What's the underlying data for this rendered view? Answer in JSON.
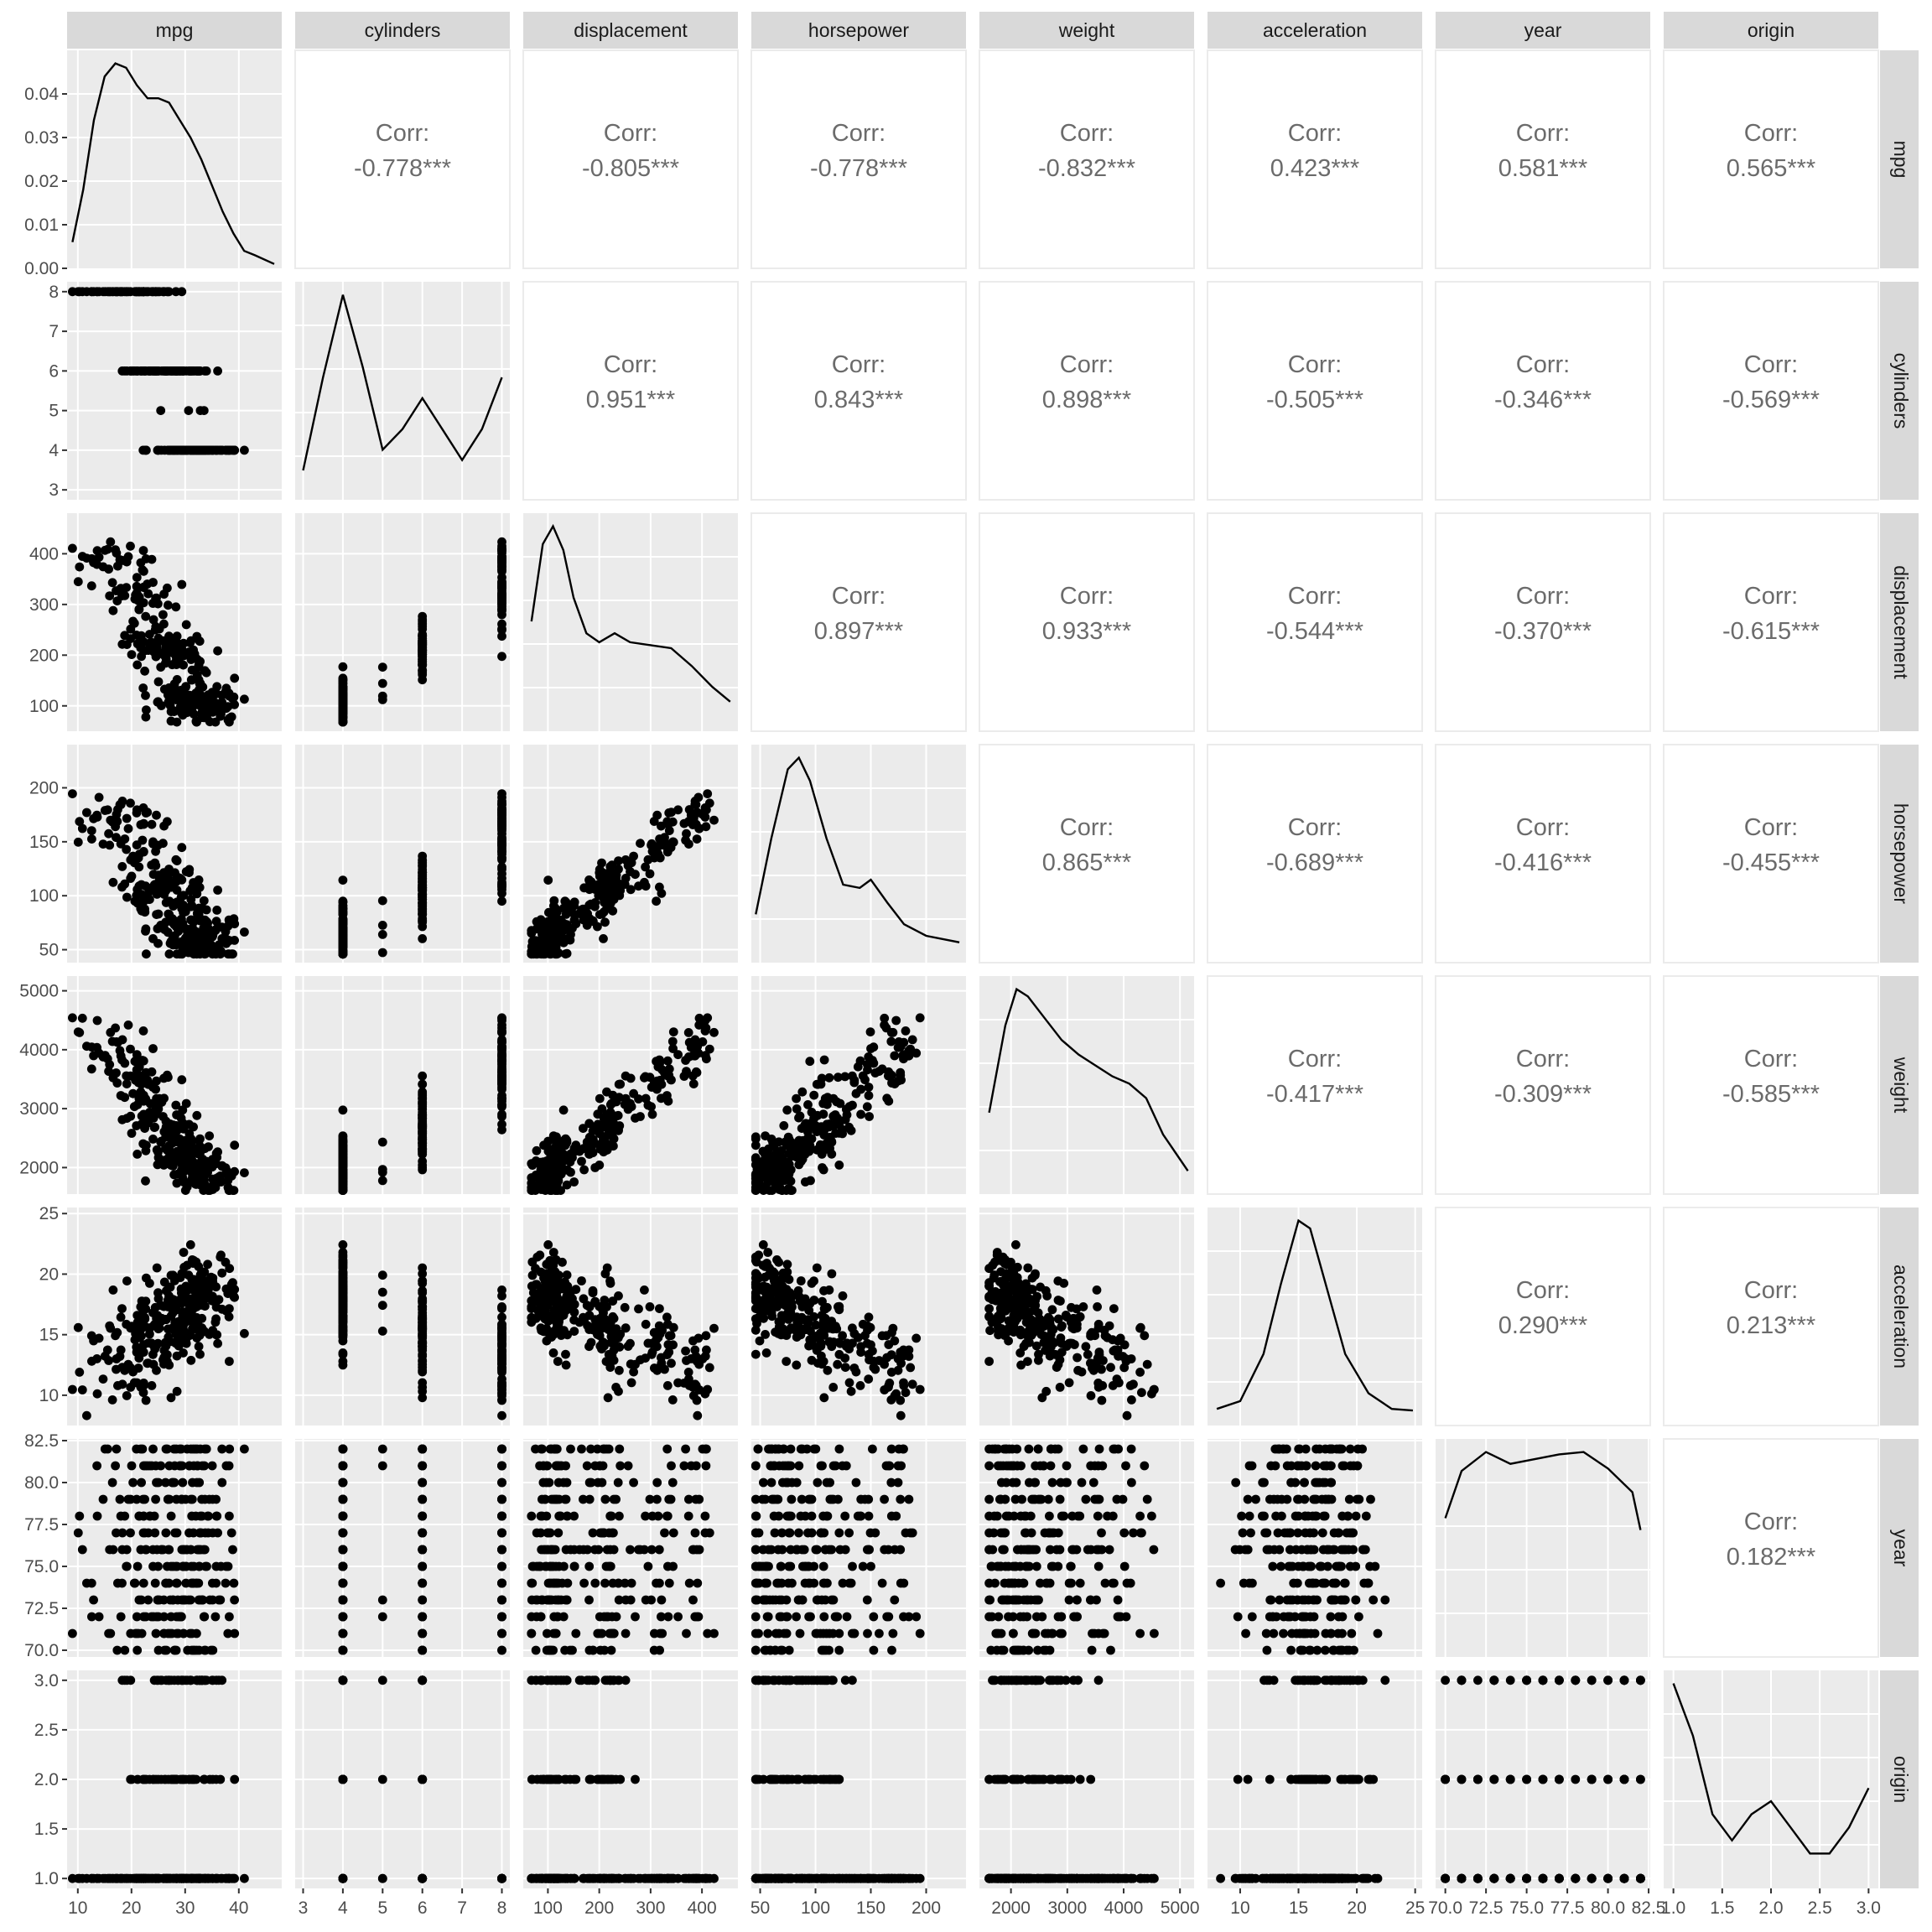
{
  "chart_data": {
    "type": "scatter",
    "kind": "pairs-plot",
    "variables": [
      "mpg",
      "cylinders",
      "displacement",
      "horsepower",
      "weight",
      "acceleration",
      "year",
      "origin"
    ],
    "corr_prefix": "Corr:",
    "correlations": [
      {
        "row": "mpg",
        "col": "cylinders",
        "value": "-0.778***"
      },
      {
        "row": "mpg",
        "col": "displacement",
        "value": "-0.805***"
      },
      {
        "row": "mpg",
        "col": "horsepower",
        "value": "-0.778***"
      },
      {
        "row": "mpg",
        "col": "weight",
        "value": "-0.832***"
      },
      {
        "row": "mpg",
        "col": "acceleration",
        "value": "0.423***"
      },
      {
        "row": "mpg",
        "col": "year",
        "value": "0.581***"
      },
      {
        "row": "mpg",
        "col": "origin",
        "value": "0.565***"
      },
      {
        "row": "cylinders",
        "col": "displacement",
        "value": "0.951***"
      },
      {
        "row": "cylinders",
        "col": "horsepower",
        "value": "0.843***"
      },
      {
        "row": "cylinders",
        "col": "weight",
        "value": "0.898***"
      },
      {
        "row": "cylinders",
        "col": "acceleration",
        "value": "-0.505***"
      },
      {
        "row": "cylinders",
        "col": "year",
        "value": "-0.346***"
      },
      {
        "row": "cylinders",
        "col": "origin",
        "value": "-0.569***"
      },
      {
        "row": "displacement",
        "col": "horsepower",
        "value": "0.897***"
      },
      {
        "row": "displacement",
        "col": "weight",
        "value": "0.933***"
      },
      {
        "row": "displacement",
        "col": "acceleration",
        "value": "-0.544***"
      },
      {
        "row": "displacement",
        "col": "year",
        "value": "-0.370***"
      },
      {
        "row": "displacement",
        "col": "origin",
        "value": "-0.615***"
      },
      {
        "row": "horsepower",
        "col": "weight",
        "value": "0.865***"
      },
      {
        "row": "horsepower",
        "col": "acceleration",
        "value": "-0.689***"
      },
      {
        "row": "horsepower",
        "col": "year",
        "value": "-0.416***"
      },
      {
        "row": "horsepower",
        "col": "origin",
        "value": "-0.455***"
      },
      {
        "row": "weight",
        "col": "acceleration",
        "value": "-0.417***"
      },
      {
        "row": "weight",
        "col": "year",
        "value": "-0.309***"
      },
      {
        "row": "weight",
        "col": "origin",
        "value": "-0.585***"
      },
      {
        "row": "acceleration",
        "col": "year",
        "value": "0.290***"
      },
      {
        "row": "acceleration",
        "col": "origin",
        "value": "0.213***"
      },
      {
        "row": "year",
        "col": "origin",
        "value": "0.182***"
      }
    ],
    "x_axes": [
      {
        "var": "mpg",
        "range": [
          8,
          48
        ],
        "ticks": [
          10,
          20,
          30,
          40
        ],
        "tick_labels": [
          "10",
          "20",
          "30",
          "40"
        ]
      },
      {
        "var": "cylinders",
        "range": [
          2.8,
          8.2
        ],
        "ticks": [
          3,
          4,
          5,
          6,
          7,
          8
        ],
        "tick_labels": [
          "3",
          "4",
          "5",
          "6",
          "7",
          "8"
        ]
      },
      {
        "var": "displacement",
        "range": [
          52,
          470
        ],
        "ticks": [
          100,
          200,
          300,
          400
        ],
        "tick_labels": [
          "100",
          "200",
          "300",
          "400"
        ]
      },
      {
        "var": "horsepower",
        "range": [
          42,
          236
        ],
        "ticks": [
          50,
          100,
          150,
          200
        ],
        "tick_labels": [
          "50",
          "100",
          "150",
          "200"
        ]
      },
      {
        "var": "weight",
        "range": [
          1440,
          5250
        ],
        "ticks": [
          2000,
          3000,
          4000,
          5000
        ],
        "tick_labels": [
          "2000",
          "3000",
          "4000",
          "5000"
        ]
      },
      {
        "var": "acceleration",
        "range": [
          7.2,
          25.6
        ],
        "ticks": [
          10,
          15,
          20,
          25
        ],
        "tick_labels": [
          "10",
          "15",
          "20",
          "25"
        ]
      },
      {
        "var": "year",
        "range": [
          69.4,
          82.6
        ],
        "ticks": [
          70.0,
          72.5,
          75.0,
          77.5,
          80.0,
          82.5
        ],
        "tick_labels": [
          "70.0",
          "72.5",
          "75.0",
          "77.5",
          "80.0",
          "82.5"
        ]
      },
      {
        "var": "origin",
        "range": [
          0.9,
          3.1
        ],
        "ticks": [
          1.0,
          1.5,
          2.0,
          2.5,
          3.0
        ],
        "tick_labels": [
          "1.0",
          "1.5",
          "2.0",
          "2.5",
          "3.0"
        ]
      }
    ],
    "y_axes": [
      {
        "var": "mpg",
        "range": [
          0,
          0.05
        ],
        "ticks": [
          0.0,
          0.01,
          0.02,
          0.03,
          0.04
        ],
        "tick_labels": [
          "0.00",
          "0.01",
          "0.02",
          "0.03",
          "0.04"
        ]
      },
      {
        "var": "cylinders",
        "range": [
          2.75,
          8.25
        ],
        "ticks": [
          3,
          4,
          5,
          6,
          7,
          8
        ],
        "tick_labels": [
          "3",
          "4",
          "5",
          "6",
          "7",
          "8"
        ]
      },
      {
        "var": "displacement",
        "range": [
          50,
          480
        ],
        "ticks": [
          100,
          200,
          300,
          400
        ],
        "tick_labels": [
          "100",
          "200",
          "300",
          "400"
        ]
      },
      {
        "var": "horsepower",
        "range": [
          38,
          240
        ],
        "ticks": [
          50,
          100,
          150,
          200
        ],
        "tick_labels": [
          "50",
          "100",
          "150",
          "200"
        ]
      },
      {
        "var": "weight",
        "range": [
          1550,
          5250
        ],
        "ticks": [
          2000,
          3000,
          4000,
          5000
        ],
        "tick_labels": [
          "2000",
          "3000",
          "4000",
          "5000"
        ]
      },
      {
        "var": "acceleration",
        "range": [
          7.5,
          25.5
        ],
        "ticks": [
          10,
          15,
          20,
          25
        ],
        "tick_labels": [
          "10",
          "15",
          "20",
          "25"
        ]
      },
      {
        "var": "year",
        "range": [
          69.6,
          82.6
        ],
        "ticks": [
          70.0,
          72.5,
          75.0,
          77.5,
          80.0,
          82.5
        ],
        "tick_labels": [
          "70.0",
          "72.5",
          "75.0",
          "77.5",
          "80.0",
          "82.5"
        ]
      },
      {
        "var": "origin",
        "range": [
          0.9,
          3.1
        ],
        "ticks": [
          1.0,
          1.5,
          2.0,
          2.5,
          3.0
        ],
        "tick_labels": [
          "1.0",
          "1.5",
          "2.0",
          "2.5",
          "3.0"
        ]
      }
    ],
    "densities": [
      {
        "var": "mpg",
        "points": [
          [
            9,
            0.006
          ],
          [
            11,
            0.018
          ],
          [
            13,
            0.034
          ],
          [
            15,
            0.044
          ],
          [
            17,
            0.047
          ],
          [
            19,
            0.046
          ],
          [
            21,
            0.042
          ],
          [
            23,
            0.039
          ],
          [
            25,
            0.039
          ],
          [
            27,
            0.038
          ],
          [
            29,
            0.034
          ],
          [
            31,
            0.03
          ],
          [
            33,
            0.025
          ],
          [
            35,
            0.019
          ],
          [
            37,
            0.013
          ],
          [
            39,
            0.008
          ],
          [
            41,
            0.004
          ],
          [
            43,
            0.003
          ],
          [
            46.6,
            0.001
          ]
        ]
      },
      {
        "var": "cylinders",
        "points": [
          [
            3,
            0.2
          ],
          [
            3.5,
            1.1
          ],
          [
            4,
            1.9
          ],
          [
            4.5,
            1.2
          ],
          [
            5,
            0.4
          ],
          [
            5.5,
            0.6
          ],
          [
            6,
            0.9
          ],
          [
            6.5,
            0.6
          ],
          [
            7,
            0.3
          ],
          [
            7.5,
            0.6
          ],
          [
            8,
            1.1
          ]
        ]
      },
      {
        "var": "displacement",
        "points": [
          [
            68,
            0.0034
          ],
          [
            90,
            0.006
          ],
          [
            110,
            0.0066
          ],
          [
            130,
            0.0058
          ],
          [
            150,
            0.0042
          ],
          [
            175,
            0.003
          ],
          [
            200,
            0.0027
          ],
          [
            230,
            0.003
          ],
          [
            260,
            0.0027
          ],
          [
            300,
            0.0026
          ],
          [
            340,
            0.0025
          ],
          [
            380,
            0.0019
          ],
          [
            420,
            0.0012
          ],
          [
            455,
            0.0007
          ]
        ]
      },
      {
        "var": "horsepower",
        "points": [
          [
            46,
            0.0024
          ],
          [
            60,
            0.007
          ],
          [
            75,
            0.0112
          ],
          [
            85,
            0.0119
          ],
          [
            95,
            0.0105
          ],
          [
            110,
            0.007
          ],
          [
            125,
            0.0042
          ],
          [
            140,
            0.004
          ],
          [
            150,
            0.0045
          ],
          [
            165,
            0.0031
          ],
          [
            180,
            0.0018
          ],
          [
            200,
            0.0011
          ],
          [
            230,
            0.0007
          ]
        ]
      },
      {
        "var": "weight",
        "points": [
          [
            1613,
            0.0002
          ],
          [
            1900,
            0.00044
          ],
          [
            2100,
            0.00054
          ],
          [
            2300,
            0.00052
          ],
          [
            2600,
            0.00046
          ],
          [
            2900,
            0.0004
          ],
          [
            3200,
            0.00036
          ],
          [
            3500,
            0.00033
          ],
          [
            3800,
            0.0003
          ],
          [
            4100,
            0.00028
          ],
          [
            4400,
            0.00024
          ],
          [
            4700,
            0.00014
          ],
          [
            5140,
            4e-05
          ]
        ]
      },
      {
        "var": "acceleration",
        "points": [
          [
            8,
            0.005
          ],
          [
            10,
            0.01
          ],
          [
            12,
            0.04
          ],
          [
            13.5,
            0.085
          ],
          [
            15,
            0.125
          ],
          [
            16,
            0.12
          ],
          [
            17.5,
            0.08
          ],
          [
            19,
            0.04
          ],
          [
            21,
            0.015
          ],
          [
            23,
            0.005
          ],
          [
            24.8,
            0.004
          ]
        ]
      },
      {
        "var": "year",
        "points": [
          [
            70,
            0.055
          ],
          [
            71,
            0.075
          ],
          [
            72.5,
            0.083
          ],
          [
            74,
            0.078
          ],
          [
            75.5,
            0.08
          ],
          [
            77,
            0.082
          ],
          [
            78.5,
            0.083
          ],
          [
            80,
            0.076
          ],
          [
            81.5,
            0.066
          ],
          [
            82,
            0.05
          ]
        ]
      },
      {
        "var": "origin",
        "points": [
          [
            1,
            1.5
          ],
          [
            1.2,
            1.1
          ],
          [
            1.4,
            0.5
          ],
          [
            1.6,
            0.3
          ],
          [
            1.8,
            0.5
          ],
          [
            2,
            0.6
          ],
          [
            2.2,
            0.4
          ],
          [
            2.4,
            0.2
          ],
          [
            2.6,
            0.2
          ],
          [
            2.8,
            0.4
          ],
          [
            3,
            0.7
          ]
        ]
      }
    ]
  }
}
